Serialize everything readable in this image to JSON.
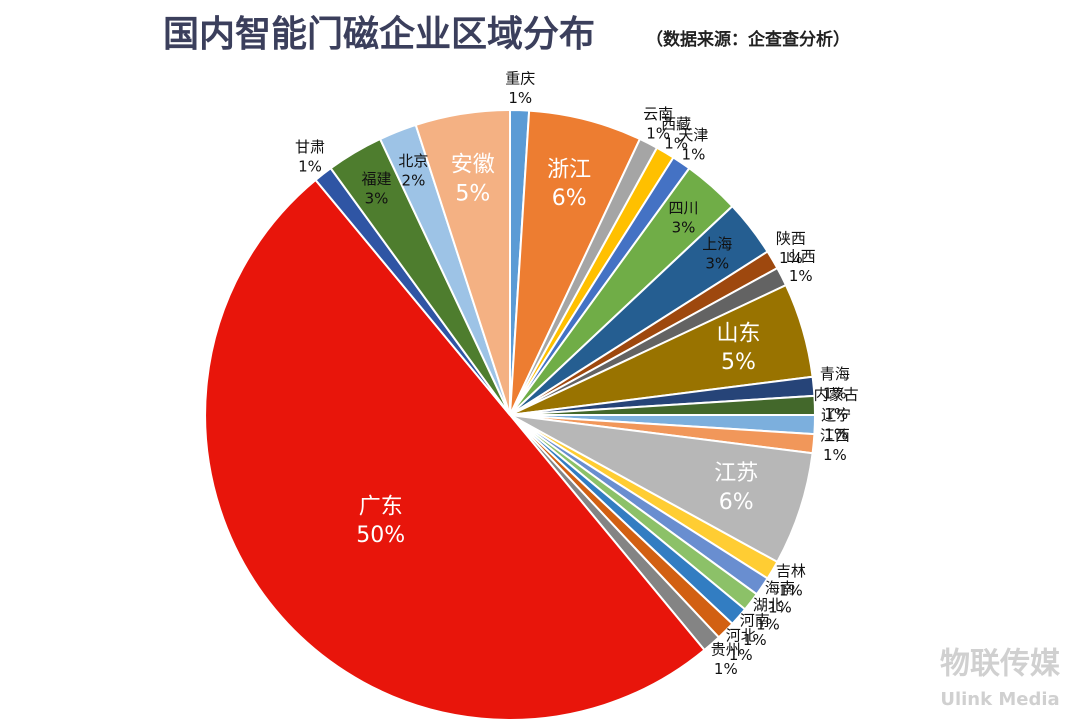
{
  "chart_data": {
    "type": "pie",
    "title": "国内智能门磁企业区域分布",
    "subtitle": "（数据来源：企查查分析）",
    "categories": [
      "重庆",
      "浙江",
      "云南",
      "西藏",
      "天津",
      "四川",
      "上海",
      "陕西",
      "山西",
      "山东",
      "青海",
      "内蒙古",
      "辽宁",
      "江西",
      "江苏",
      "吉林",
      "海南",
      "湖北",
      "河南",
      "河北",
      "贵州",
      "广东",
      "甘肃",
      "福建",
      "北京",
      "安徽"
    ],
    "values": [
      1,
      6,
      1,
      1,
      1,
      3,
      3,
      1,
      1,
      5,
      1,
      1,
      1,
      1,
      6,
      1,
      1,
      1,
      1,
      1,
      1,
      50,
      1,
      3,
      2,
      5
    ],
    "value_labels": [
      "1%",
      "6%",
      "1%",
      "1%",
      "1%",
      "3%",
      "3%",
      "1%",
      "1%",
      "5%",
      "1%",
      "1%",
      "1%",
      "1%",
      "6%",
      "1%",
      "1%",
      "1%",
      "1%",
      "1%",
      "1%",
      "50%",
      "1%",
      "3%",
      "2%",
      "5%"
    ],
    "colors": [
      "#5b9bd5",
      "#ed7d31",
      "#a5a5a5",
      "#ffc000",
      "#4472c4",
      "#70ad47",
      "#255e91",
      "#9e480e",
      "#636363",
      "#997300",
      "#264478",
      "#43682b",
      "#7cafdd",
      "#f1975a",
      "#b7b7b7",
      "#ffcd33",
      "#698ed0",
      "#8cc168",
      "#327dc2",
      "#d26012",
      "#848484",
      "#e8150b",
      "#2f55a4",
      "#4e7d2e",
      "#9dc3e6",
      "#f4b183"
    ]
  },
  "watermark": {
    "name": "物联传媒",
    "brand": "Ulink Media"
  }
}
